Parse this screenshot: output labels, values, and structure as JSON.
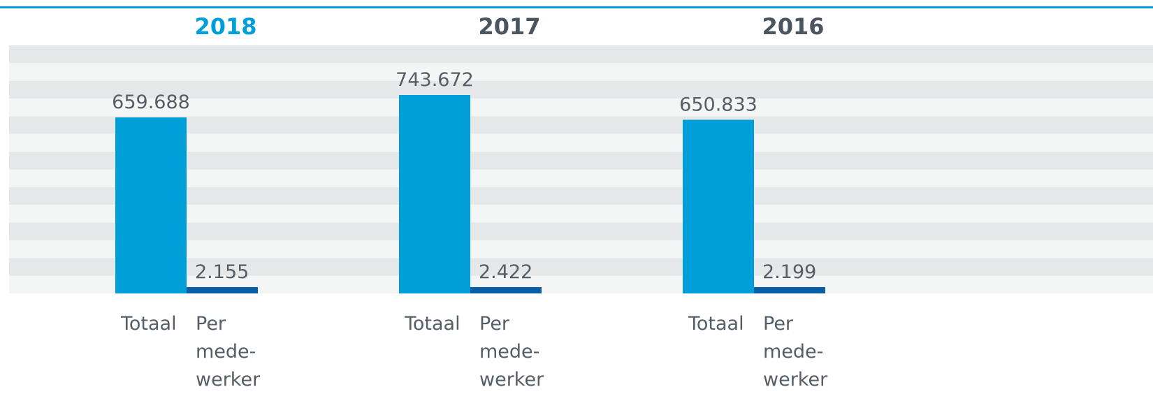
{
  "chart_data": {
    "type": "bar",
    "categories": [
      "2018",
      "2017",
      "2016"
    ],
    "highlight_color": "#009fda",
    "series": [
      {
        "name": "Totaal",
        "color": "#009fda",
        "values": [
          659688,
          743672,
          650833
        ],
        "value_labels": [
          "659.688",
          "743.672",
          "650.833"
        ]
      },
      {
        "name": "Per mede-werker",
        "color": "#0a5ea6",
        "values": [
          2155,
          2422,
          2199
        ],
        "value_labels": [
          "2.155",
          "2.422",
          "2.199"
        ]
      }
    ]
  }
}
